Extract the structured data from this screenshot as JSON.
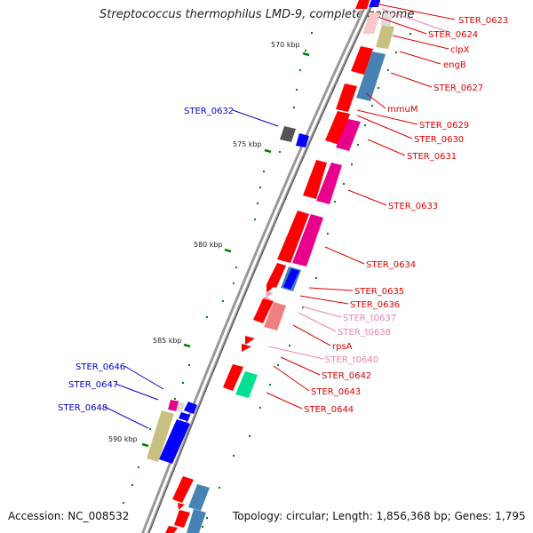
{
  "title": "Streptococcus thermophilus LMD-9, complete genome",
  "footer": {
    "accession": "Accession: NC_008532",
    "topology": "Topology: circular; Length: 1,856,368 bp; Genes: 1,795"
  },
  "colors": {
    "red": "#ff0000",
    "blue": "#0000ff",
    "pink": "#e8008a",
    "light_pink": "#f7a0c0",
    "steel_blue": "#4682b4",
    "olive": "#c8c080",
    "gray": "#555555",
    "green": "#00e090",
    "tick_green": "#008000",
    "label_red": "#dd0000",
    "label_blue": "#0000cc",
    "label_pink": "#f080b0"
  },
  "kbp_ticks": [
    "570 kbp",
    "575 kbp",
    "580 kbp",
    "585 kbp",
    "590 kbp"
  ],
  "right_labels": [
    {
      "text": "STER_0623",
      "color": "red"
    },
    {
      "text": "STER_0624",
      "color": "red"
    },
    {
      "text": "clpX",
      "color": "red"
    },
    {
      "text": "engB",
      "color": "red"
    },
    {
      "text": "STER_0627",
      "color": "red"
    },
    {
      "text": "mmuM",
      "color": "red"
    },
    {
      "text": "STER_0629",
      "color": "red"
    },
    {
      "text": "STER_0630",
      "color": "red"
    },
    {
      "text": "STER_0631",
      "color": "red"
    },
    {
      "text": "STER_0633",
      "color": "red"
    },
    {
      "text": "STER_0634",
      "color": "red"
    },
    {
      "text": "STER_0635",
      "color": "red"
    },
    {
      "text": "STER_0636",
      "color": "red"
    },
    {
      "text": "STER_t0637",
      "color": "pink"
    },
    {
      "text": "STER_t0638",
      "color": "pink"
    },
    {
      "text": "rpsA",
      "color": "red"
    },
    {
      "text": "STER_t0640",
      "color": "pink"
    },
    {
      "text": "STER_0642",
      "color": "red"
    },
    {
      "text": "STER_0643",
      "color": "red"
    },
    {
      "text": "STER_0644",
      "color": "red"
    }
  ],
  "left_labels": [
    {
      "text": "STER_0632",
      "color": "blue"
    },
    {
      "text": "STER_0646",
      "color": "blue"
    },
    {
      "text": "STER_0647",
      "color": "blue"
    },
    {
      "text": "STER_0648",
      "color": "blue"
    }
  ]
}
